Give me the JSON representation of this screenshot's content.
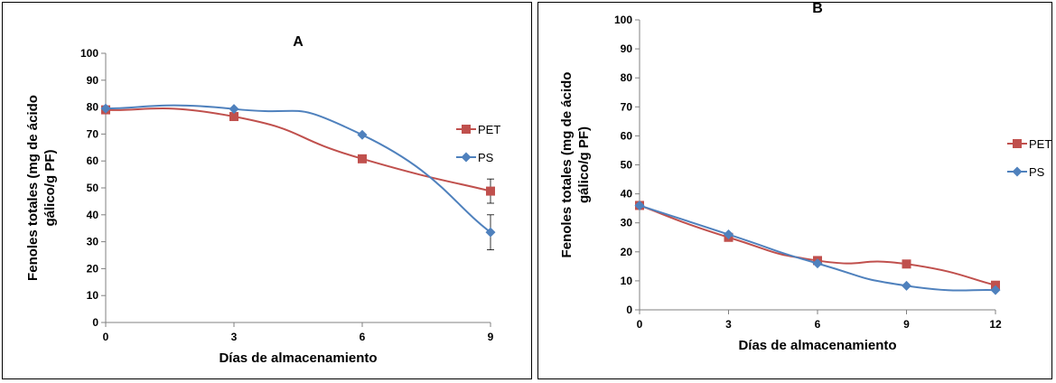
{
  "colors": {
    "PET": "#c0504d",
    "PS": "#4f81bd"
  },
  "chart_data": [
    {
      "type": "line",
      "title": "A",
      "xlabel": "Días de almacenamiento",
      "ylabel_line1": "Fenoles totales (mg de ácido",
      "ylabel_line2": "gálico/g PF)",
      "x": [
        0,
        3,
        6,
        9
      ],
      "xlim": [
        0,
        9
      ],
      "ylim": [
        0,
        100
      ],
      "yticks": [
        0,
        10,
        20,
        30,
        40,
        50,
        60,
        70,
        80,
        90,
        100
      ],
      "legend": "right",
      "series": [
        {
          "name": "PET",
          "marker": "square",
          "values": [
            79,
            76.5,
            60.8,
            48.8
          ],
          "errors": [
            0,
            0,
            0,
            4.5
          ]
        },
        {
          "name": "PS",
          "marker": "diamond",
          "values": [
            79.5,
            79.3,
            69.7,
            33.5
          ],
          "errors": [
            0,
            0,
            0,
            6.5
          ]
        }
      ]
    },
    {
      "type": "line",
      "title": "B",
      "xlabel": "Días de almacenamiento",
      "ylabel_line1": "Fenoles totales (mg de ácido",
      "ylabel_line2": "gálico/g PF)",
      "x": [
        0,
        3,
        6,
        9,
        12
      ],
      "xlim": [
        0,
        12
      ],
      "ylim": [
        0,
        100
      ],
      "yticks": [
        0,
        10,
        20,
        30,
        40,
        50,
        60,
        70,
        80,
        90,
        100
      ],
      "legend": "right",
      "series": [
        {
          "name": "PET",
          "marker": "square",
          "values": [
            36,
            25,
            17,
            15.8,
            8.5
          ],
          "errors": [
            0,
            0,
            0,
            0,
            0
          ]
        },
        {
          "name": "PS",
          "marker": "diamond",
          "values": [
            36,
            26,
            16,
            8.3,
            6.8
          ],
          "errors": [
            0,
            0,
            0,
            0,
            0
          ]
        }
      ]
    }
  ]
}
